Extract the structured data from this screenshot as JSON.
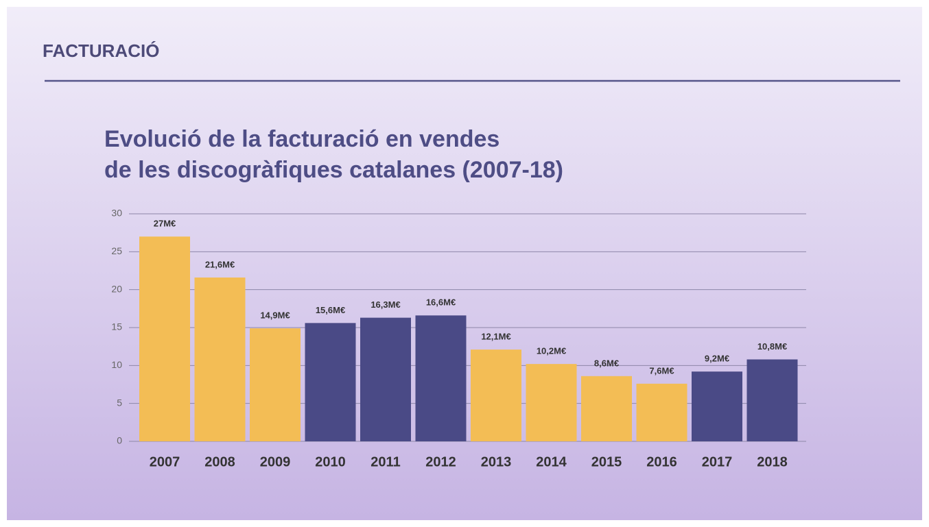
{
  "heading": "FACTURACIÓ",
  "chart_data": {
    "type": "bar",
    "title": [
      "Evolució de la facturació en vendes",
      "de les discogràfiques catalanes (2007-18)"
    ],
    "categories": [
      "2007",
      "2008",
      "2009",
      "2010",
      "2011",
      "2012",
      "2013",
      "2014",
      "2015",
      "2016",
      "2017",
      "2018"
    ],
    "values": [
      27,
      21.6,
      14.9,
      15.6,
      16.3,
      16.6,
      12.1,
      10.2,
      8.6,
      7.6,
      9.2,
      10.8
    ],
    "value_labels": [
      "27M€",
      "21,6M€",
      "14,9M€",
      "15,6M€",
      "16,3M€",
      "16,6M€",
      "12,1M€",
      "10,2M€",
      "8,6M€",
      "7,6M€",
      "9,2M€",
      "10,8M€"
    ],
    "colors": [
      "#f3bd55",
      "#f3bd55",
      "#f3bd55",
      "#4a4a86",
      "#4a4a86",
      "#4a4a86",
      "#f3bd55",
      "#f3bd55",
      "#f3bd55",
      "#f3bd55",
      "#4a4a86",
      "#4a4a86"
    ],
    "ylim": [
      0,
      30
    ],
    "yticks": [
      0,
      5,
      10,
      15,
      20,
      25,
      30
    ],
    "grid": true
  }
}
